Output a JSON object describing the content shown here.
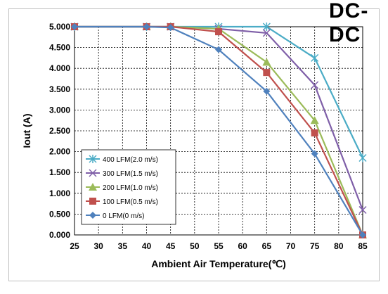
{
  "corner_title": "DC-DC",
  "chart_data": {
    "type": "line",
    "title": "",
    "xlabel": "Ambient Air Temperature(℃)",
    "ylabel": "Iout (A)",
    "xlim": [
      25,
      85
    ],
    "ylim": [
      0,
      5
    ],
    "x_ticks": [
      "25",
      "30",
      "35",
      "40",
      "45",
      "50",
      "55",
      "60",
      "65",
      "70",
      "75",
      "80",
      "85"
    ],
    "y_ticks": [
      "0.000",
      "0.500",
      "1.000",
      "1.500",
      "2.000",
      "2.500",
      "3.000",
      "3.500",
      "4.000",
      "4.500",
      "5.000"
    ],
    "grid": true,
    "legend_position": "bottom-left",
    "series": [
      {
        "name": "400 LFM(2.0 m/s)",
        "color": "#4bacc6",
        "marker": "asterisk",
        "x": [
          25,
          40,
          45,
          55,
          65,
          75,
          85
        ],
        "values": [
          5.0,
          5.0,
          5.0,
          5.0,
          5.0,
          4.25,
          1.85
        ]
      },
      {
        "name": "300 LFM(1.5 m/s)",
        "color": "#7f5fa8",
        "marker": "x",
        "x": [
          25,
          40,
          45,
          55,
          65,
          75,
          85
        ],
        "values": [
          5.0,
          5.0,
          5.0,
          4.95,
          4.85,
          3.6,
          0.6
        ]
      },
      {
        "name": "200 LFM(1.0 m/s)",
        "color": "#9bbb59",
        "marker": "triangle",
        "x": [
          25,
          40,
          45,
          55,
          65,
          75,
          85
        ],
        "values": [
          5.0,
          5.0,
          5.0,
          4.95,
          4.15,
          2.75,
          0.0
        ]
      },
      {
        "name": "100 LFM(0.5 m/s)",
        "color": "#c0504d",
        "marker": "square",
        "x": [
          25,
          40,
          45,
          55,
          65,
          75,
          85
        ],
        "values": [
          5.0,
          5.0,
          5.0,
          4.88,
          3.9,
          2.45,
          0.0
        ]
      },
      {
        "name": "0 LFM(0 m/s)",
        "color": "#4f81bd",
        "marker": "diamond",
        "x": [
          25,
          40,
          45,
          55,
          65,
          75,
          85
        ],
        "values": [
          5.0,
          5.0,
          4.98,
          4.45,
          3.45,
          1.95,
          0.0
        ]
      }
    ]
  }
}
